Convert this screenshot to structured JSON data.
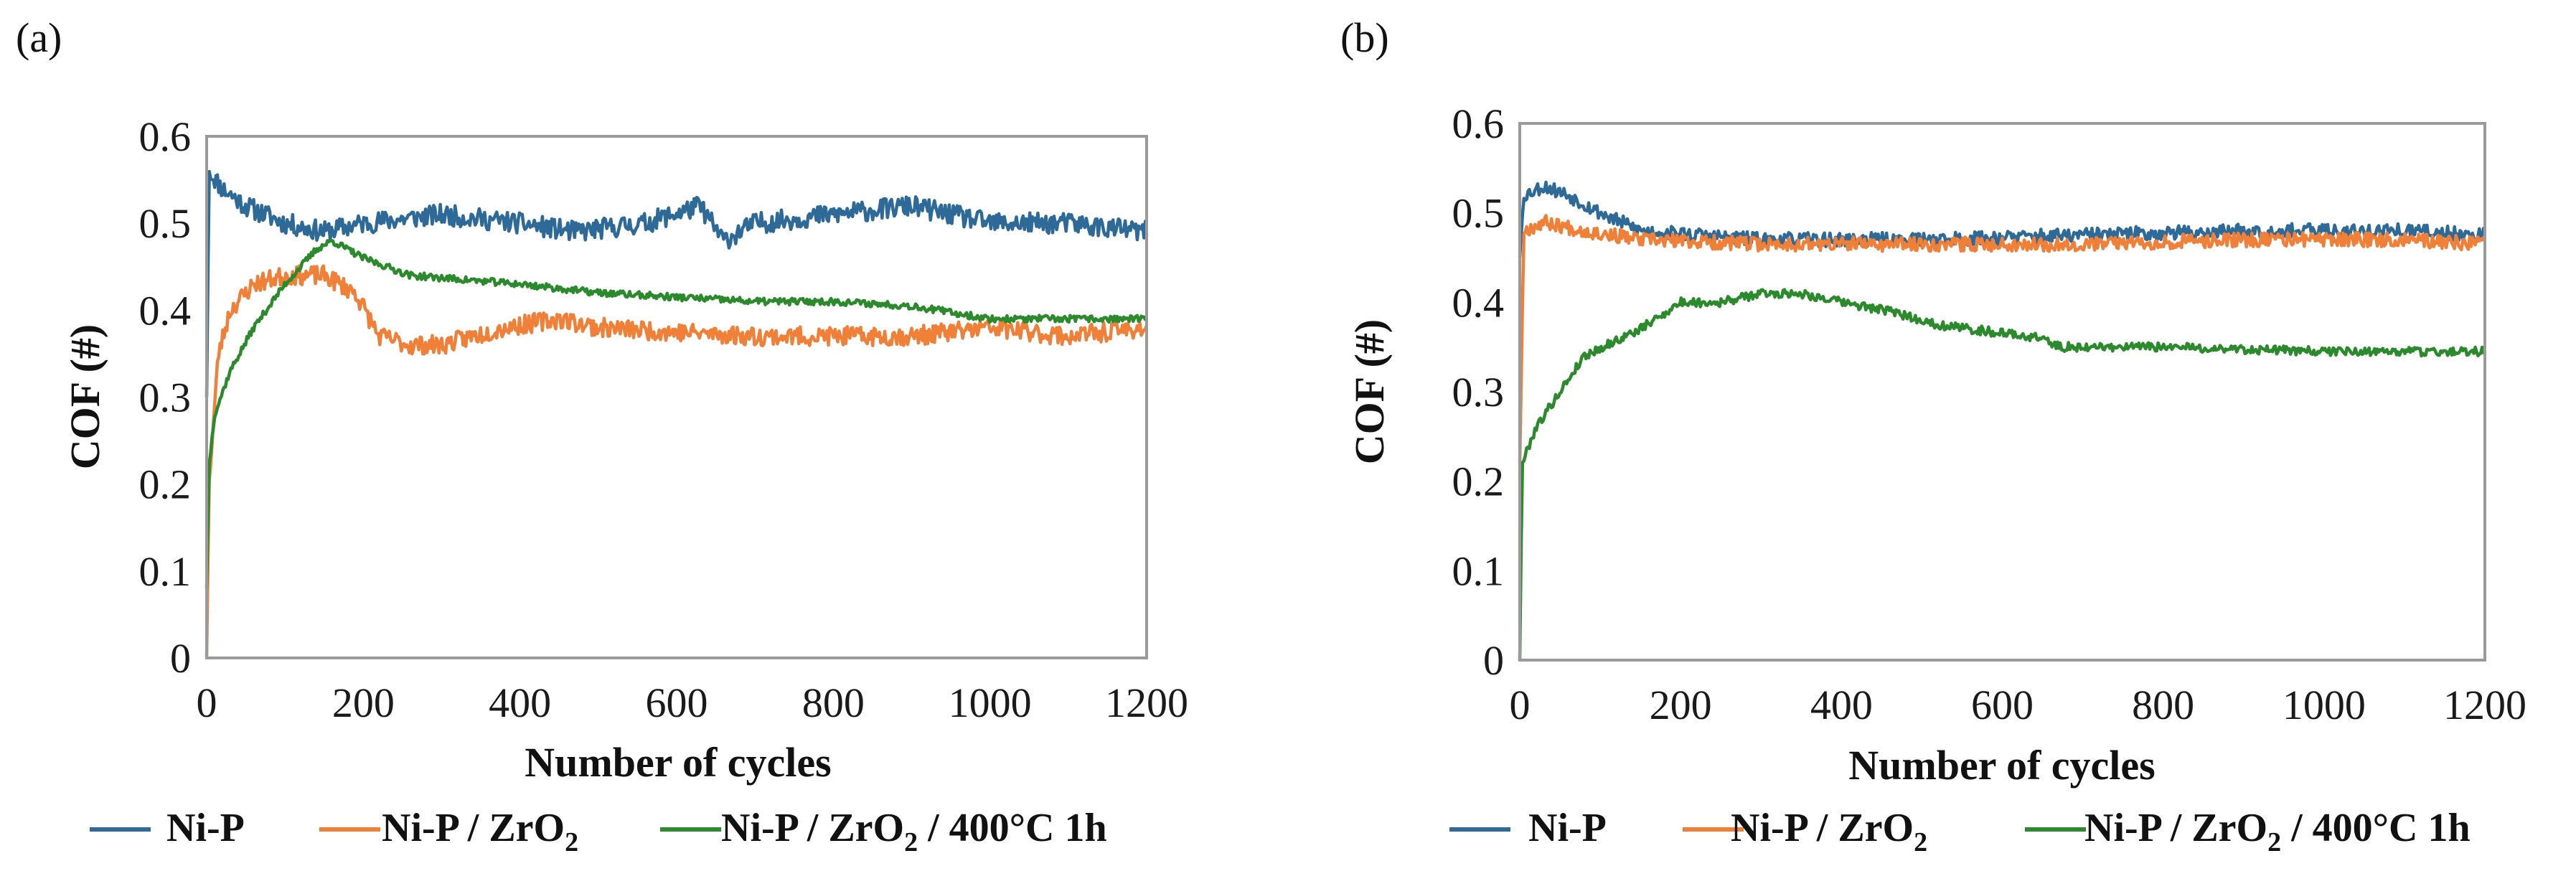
{
  "chart_data": [
    {
      "panel_label": "(a)",
      "type": "line",
      "xlabel": "Number of cycles",
      "ylabel": "COF (#)",
      "xlim": [
        0,
        1200
      ],
      "ylim": [
        0,
        0.6
      ],
      "x_ticks": [
        "0",
        "200",
        "400",
        "600",
        "800",
        "1000",
        "1200"
      ],
      "y_ticks": [
        "0",
        "0.1",
        "0.2",
        "0.3",
        "0.4",
        "0.5",
        "0.6"
      ],
      "legend": [
        {
          "main": "Ni-P",
          "sub": "",
          "rest": ""
        },
        {
          "main": "Ni-P / ZrO",
          "sub": "2",
          "rest": ""
        },
        {
          "main": "Ni-P / ZrO",
          "sub": "2",
          "rest": " / 400°C 1h"
        }
      ],
      "series": [
        {
          "name": "Ni-P",
          "color": "#2e6a97",
          "noise": 0.012,
          "seed": 11,
          "points": [
            [
              0,
              0.3
            ],
            [
              3,
              0.56
            ],
            [
              20,
              0.54
            ],
            [
              50,
              0.52
            ],
            [
              100,
              0.5
            ],
            [
              150,
              0.49
            ],
            [
              200,
              0.5
            ],
            [
              300,
              0.51
            ],
            [
              400,
              0.5
            ],
            [
              470,
              0.49
            ],
            [
              560,
              0.5
            ],
            [
              630,
              0.52
            ],
            [
              660,
              0.48
            ],
            [
              700,
              0.5
            ],
            [
              800,
              0.51
            ],
            [
              900,
              0.52
            ],
            [
              1000,
              0.5
            ],
            [
              1100,
              0.5
            ],
            [
              1200,
              0.49
            ]
          ]
        },
        {
          "name": "Ni-P / ZrO2",
          "color": "#f07f38",
          "noise": 0.011,
          "seed": 23,
          "points": [
            [
              0,
              0.0
            ],
            [
              3,
              0.2
            ],
            [
              15,
              0.35
            ],
            [
              30,
              0.4
            ],
            [
              60,
              0.43
            ],
            [
              100,
              0.44
            ],
            [
              150,
              0.44
            ],
            [
              190,
              0.42
            ],
            [
              220,
              0.37
            ],
            [
              260,
              0.36
            ],
            [
              300,
              0.36
            ],
            [
              380,
              0.38
            ],
            [
              450,
              0.39
            ],
            [
              500,
              0.38
            ],
            [
              700,
              0.37
            ],
            [
              900,
              0.37
            ],
            [
              1000,
              0.38
            ],
            [
              1100,
              0.37
            ],
            [
              1200,
              0.38
            ]
          ]
        },
        {
          "name": "Ni-P / ZrO2 / 400°C 1h",
          "color": "#2b8a2b",
          "noise": 0.004,
          "seed": 37,
          "points": [
            [
              0,
              0.08
            ],
            [
              3,
              0.22
            ],
            [
              10,
              0.28
            ],
            [
              30,
              0.33
            ],
            [
              60,
              0.38
            ],
            [
              100,
              0.43
            ],
            [
              140,
              0.47
            ],
            [
              160,
              0.48
            ],
            [
              200,
              0.46
            ],
            [
              260,
              0.44
            ],
            [
              400,
              0.43
            ],
            [
              500,
              0.42
            ],
            [
              600,
              0.415
            ],
            [
              700,
              0.41
            ],
            [
              800,
              0.41
            ],
            [
              900,
              0.405
            ],
            [
              1000,
              0.39
            ],
            [
              1100,
              0.39
            ],
            [
              1200,
              0.39
            ]
          ]
        }
      ]
    },
    {
      "panel_label": "(b)",
      "type": "line",
      "xlabel": "Number of cycles",
      "ylabel": "COF (#)",
      "xlim": [
        0,
        1200
      ],
      "ylim": [
        0,
        0.6
      ],
      "x_ticks": [
        "0",
        "200",
        "400",
        "600",
        "800",
        "1000",
        "1200"
      ],
      "y_ticks": [
        "0",
        "0.1",
        "0.2",
        "0.3",
        "0.4",
        "0.5",
        "0.6"
      ],
      "legend": [
        {
          "main": "Ni-P",
          "sub": "",
          "rest": ""
        },
        {
          "main": "Ni-P / ZrO",
          "sub": "2",
          "rest": ""
        },
        {
          "main": "Ni-P / ZrO",
          "sub": "2",
          "rest": " / 400°C 1h"
        }
      ],
      "series": [
        {
          "name": "Ni-P",
          "color": "#2e6a97",
          "noise": 0.008,
          "seed": 53,
          "points": [
            [
              0,
              0.45
            ],
            [
              5,
              0.52
            ],
            [
              30,
              0.53
            ],
            [
              60,
              0.52
            ],
            [
              100,
              0.5
            ],
            [
              150,
              0.48
            ],
            [
              300,
              0.47
            ],
            [
              500,
              0.47
            ],
            [
              700,
              0.475
            ],
            [
              900,
              0.48
            ],
            [
              1100,
              0.48
            ],
            [
              1200,
              0.475
            ]
          ]
        },
        {
          "name": "Ni-P / ZrO2",
          "color": "#f07f38",
          "noise": 0.008,
          "seed": 67,
          "points": [
            [
              0,
              0.22
            ],
            [
              5,
              0.48
            ],
            [
              30,
              0.49
            ],
            [
              80,
              0.48
            ],
            [
              150,
              0.47
            ],
            [
              300,
              0.465
            ],
            [
              500,
              0.465
            ],
            [
              700,
              0.465
            ],
            [
              900,
              0.47
            ],
            [
              1100,
              0.47
            ],
            [
              1200,
              0.465
            ]
          ]
        },
        {
          "name": "Ni-P / ZrO2 / 400°C 1h",
          "color": "#2b8a2b",
          "noise": 0.005,
          "seed": 79,
          "points": [
            [
              0,
              0.0
            ],
            [
              3,
              0.22
            ],
            [
              20,
              0.26
            ],
            [
              50,
              0.3
            ],
            [
              80,
              0.34
            ],
            [
              150,
              0.37
            ],
            [
              200,
              0.4
            ],
            [
              250,
              0.4
            ],
            [
              300,
              0.41
            ],
            [
              350,
              0.41
            ],
            [
              400,
              0.4
            ],
            [
              460,
              0.39
            ],
            [
              520,
              0.375
            ],
            [
              560,
              0.37
            ],
            [
              650,
              0.36
            ],
            [
              670,
              0.35
            ],
            [
              800,
              0.35
            ],
            [
              1000,
              0.345
            ],
            [
              1200,
              0.345
            ]
          ]
        }
      ]
    }
  ]
}
